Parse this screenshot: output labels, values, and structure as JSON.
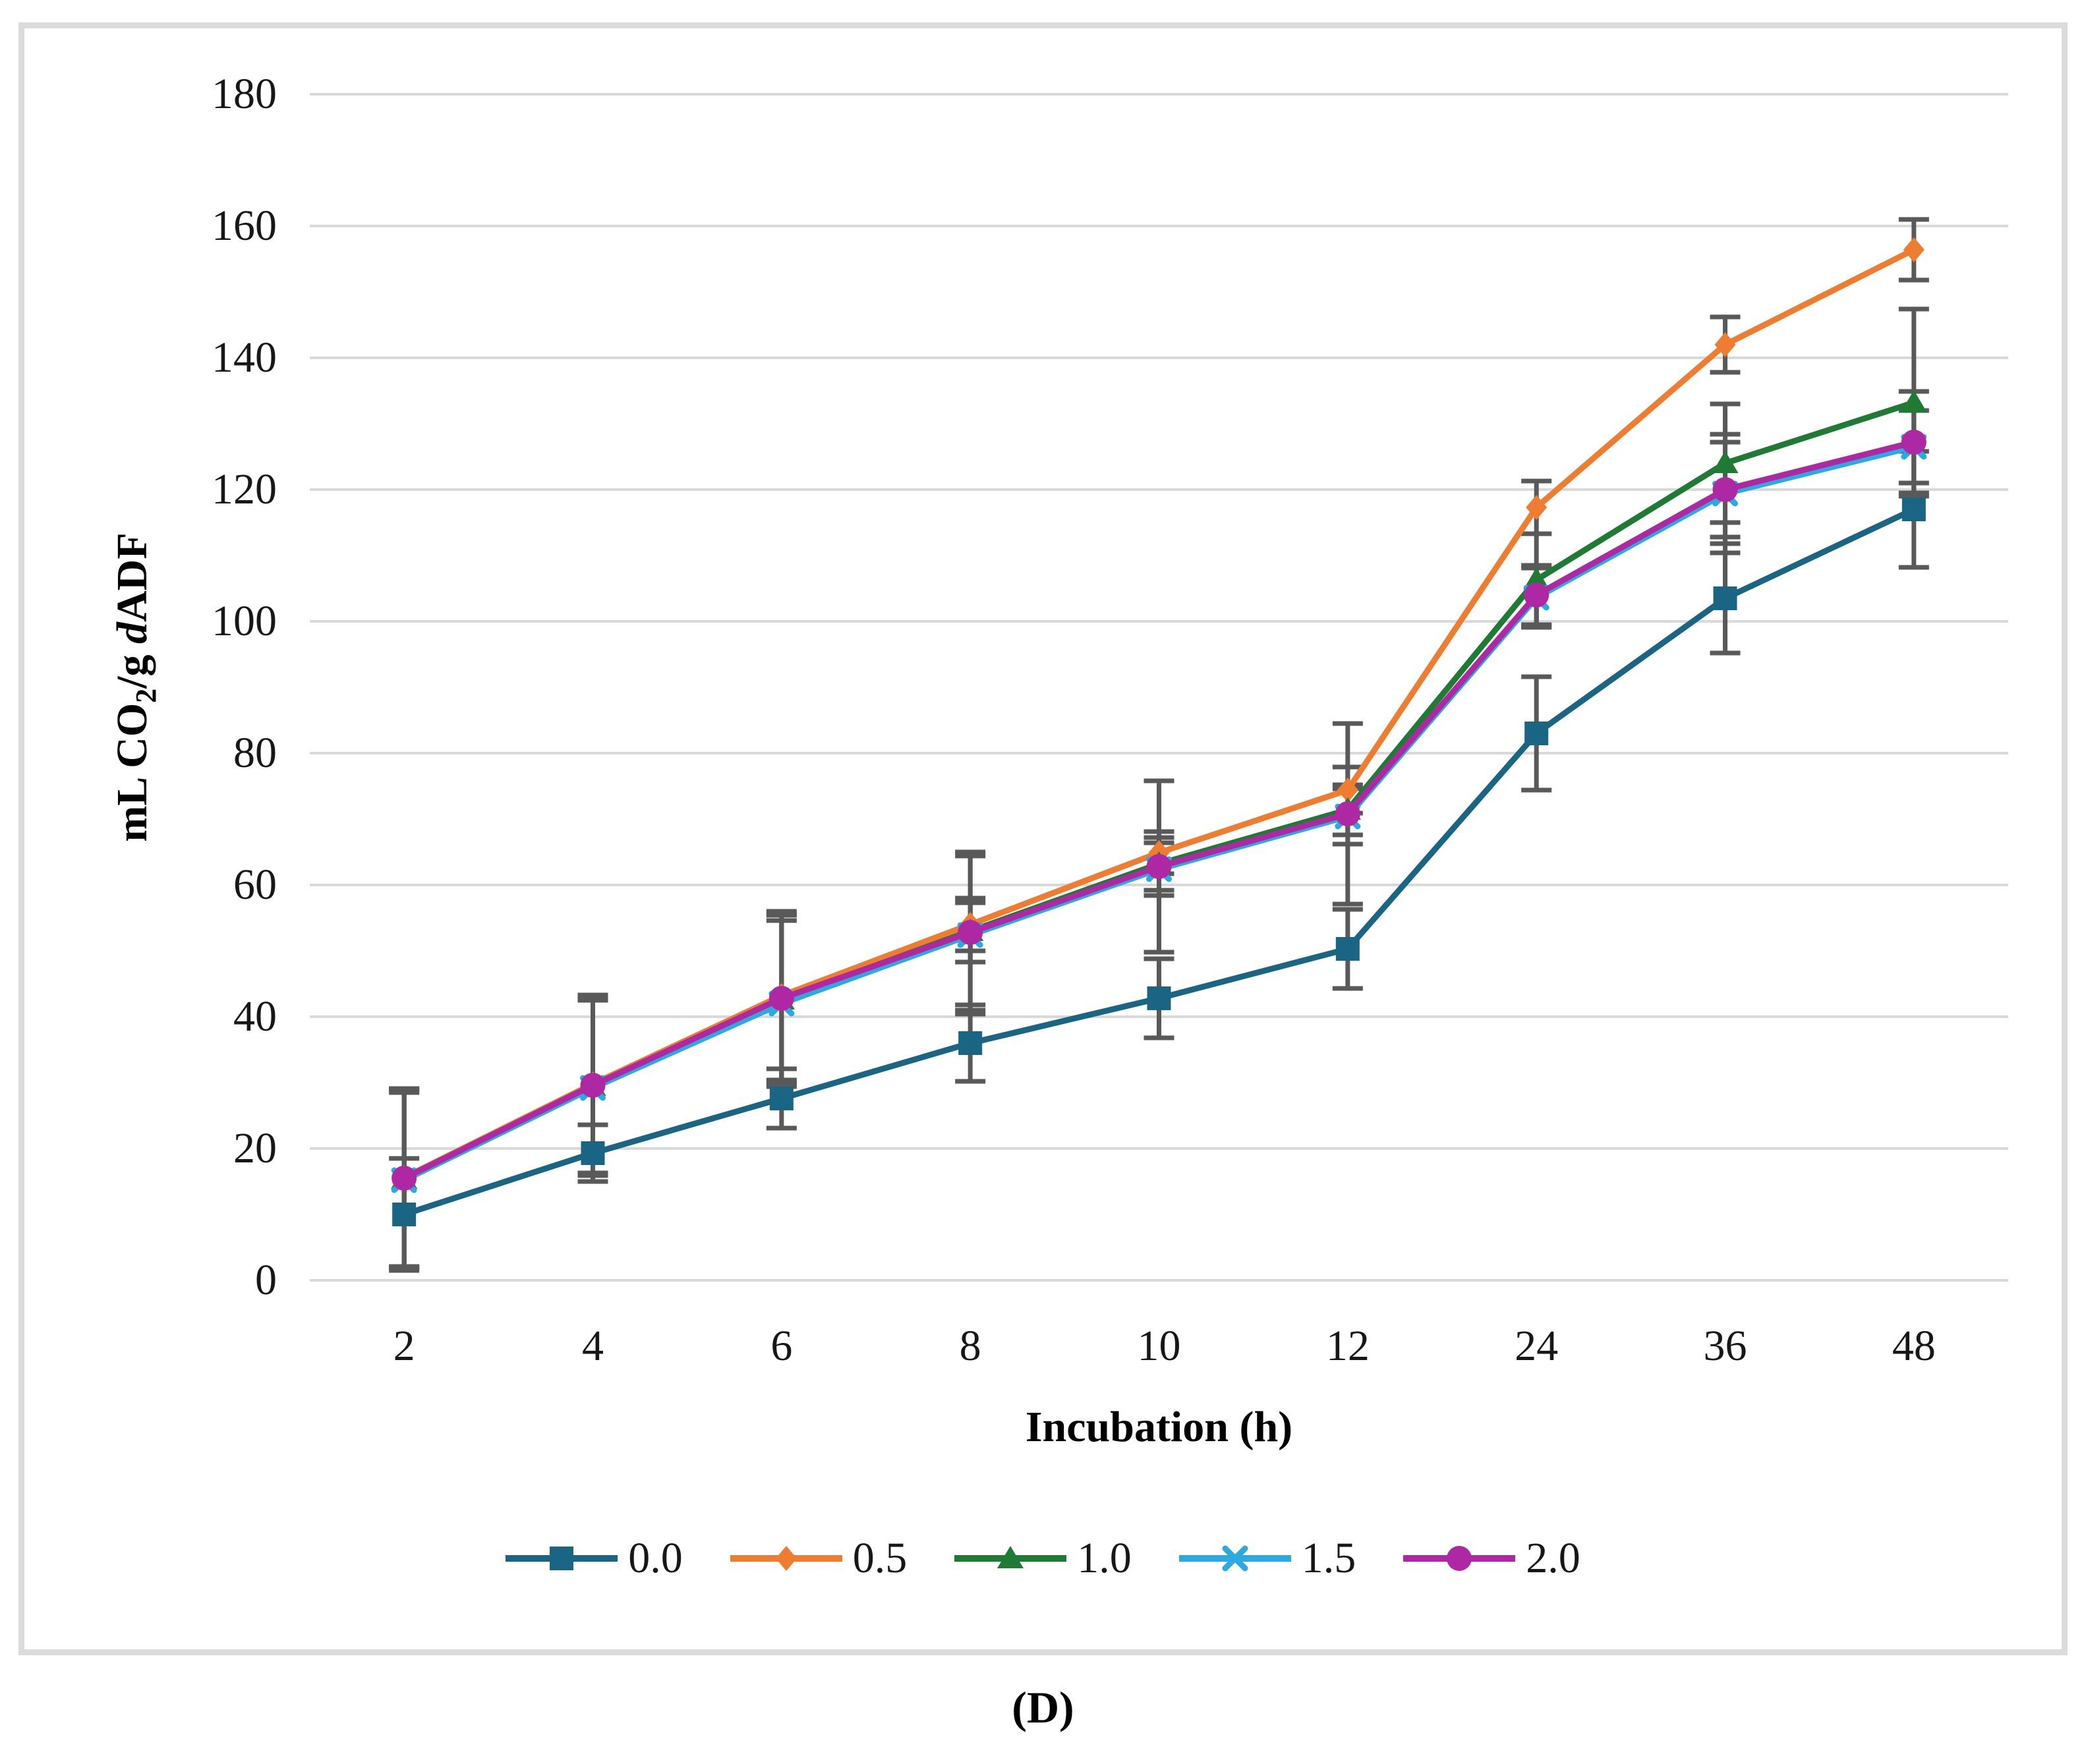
{
  "figure": {
    "caption": "(D)"
  },
  "axes": {
    "xlabel": "Incubation (h)",
    "ylabel_text": "mL CO2/g dADF",
    "ylabel_parts": {
      "pre": "mL CO",
      "sub": "2",
      "mid": "/g ",
      "italic_d": "d",
      "post": "ADF"
    }
  },
  "colors": {
    "gridline": "#D9D9D9",
    "error_bar": "#595959",
    "panel_border": "#DBDBDB",
    "text": "#171717"
  },
  "chart_data": {
    "type": "line",
    "title": "",
    "xlabel": "Incubation (h)",
    "ylabel": "mL CO2/g dADF",
    "x_type": "category",
    "categories": [
      2,
      4,
      6,
      8,
      10,
      12,
      24,
      36,
      48
    ],
    "ylim": [
      0,
      180
    ],
    "y_tick_step": 20,
    "grid": "horizontal",
    "legend_position": "bottom",
    "error_bars": true,
    "series": [
      {
        "name": "0.0",
        "color": "#1B6584",
        "marker": "square",
        "values": [
          10,
          19.3,
          27.6,
          36,
          42.8,
          50.3,
          83,
          103.5,
          117
        ],
        "errors": [
          8.5,
          4.3,
          4.5,
          5.8,
          6,
          6,
          8.6,
          8.3,
          8.8
        ]
      },
      {
        "name": "0.5",
        "color": "#EE7D31",
        "marker": "diamond",
        "values": [
          15.6,
          29.8,
          43.2,
          54,
          64.9,
          74.4,
          117.3,
          142,
          156.4
        ],
        "errors": [
          13.5,
          13.5,
          12.8,
          4,
          3.2,
          3.5,
          4,
          4.2,
          4.6
        ]
      },
      {
        "name": "1.0",
        "color": "#1F7A33",
        "marker": "triangle",
        "values": [
          15.4,
          29.5,
          42.6,
          53,
          63.2,
          71.4,
          106.3,
          124,
          133.2
        ],
        "errors": [
          13.5,
          13.5,
          12.8,
          12,
          4,
          3.8,
          7,
          9,
          14.2
        ]
      },
      {
        "name": "1.5",
        "color": "#2CA9E1",
        "marker": "x",
        "values": [
          15.2,
          29.2,
          42,
          52.4,
          62.4,
          70.4,
          103.6,
          119.4,
          126.5
        ],
        "errors": [
          13.3,
          13.3,
          12.6,
          12,
          4,
          4.2,
          4.5,
          9,
          5.5
        ]
      },
      {
        "name": "2.0",
        "color": "#AE28A4",
        "marker": "circle",
        "values": [
          15.5,
          29.6,
          42.8,
          52.8,
          62.8,
          70.8,
          104,
          120,
          127.2
        ],
        "errors": [
          13.5,
          13.5,
          12.8,
          4.5,
          13,
          13.7,
          4.5,
          7.2,
          7.7
        ]
      }
    ]
  }
}
